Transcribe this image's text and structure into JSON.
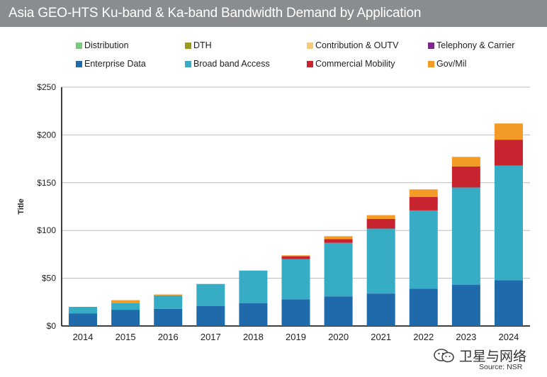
{
  "title": "Asia GEO-HTS Ku-band & Ka-band Bandwidth Demand by Application",
  "colors": {
    "title_bar": "#8a8d8f",
    "grid": "#bbbbbb",
    "axis": "#000000"
  },
  "chart_data": {
    "type": "bar",
    "stacked": true,
    "title": "Asia GEO-HTS Ku-band & Ka-band Bandwidth Demand by Application",
    "ylabel": "Title",
    "xlabel": "",
    "ylim": [
      0,
      250
    ],
    "yticks": [
      "$0",
      "$50",
      "$100",
      "$150",
      "$200",
      "$250"
    ],
    "grid": true,
    "legend_position": "top",
    "categories": [
      "2014",
      "2015",
      "2016",
      "2017",
      "2018",
      "2019",
      "2020",
      "2021",
      "2022",
      "2023",
      "2024"
    ],
    "series": [
      {
        "name": "Enterprise Data",
        "color": "#1f6aab",
        "values": [
          13,
          17,
          18,
          21,
          24,
          28,
          31,
          34,
          39,
          43,
          48
        ]
      },
      {
        "name": "Broad band Access",
        "color": "#36adc4",
        "values": [
          7,
          7,
          14,
          23,
          34,
          42,
          56,
          68,
          82,
          102,
          120
        ]
      },
      {
        "name": "Commercial Mobility",
        "color": "#c8242f",
        "values": [
          0,
          0,
          0,
          0,
          0,
          3,
          4,
          10,
          14,
          22,
          27
        ]
      },
      {
        "name": "Gov/Mil",
        "color": "#f39b26",
        "values": [
          0,
          3,
          1,
          0,
          0,
          1,
          3,
          4,
          8,
          10,
          17
        ]
      },
      {
        "name": "Distribution",
        "color": "#7cc87d",
        "values": [
          0,
          0,
          0,
          0,
          0,
          0,
          0,
          0,
          0,
          0,
          0
        ]
      },
      {
        "name": "DTH",
        "color": "#9c9a1e",
        "values": [
          0,
          0,
          0,
          0,
          0,
          0,
          0,
          0,
          0,
          0,
          0
        ]
      },
      {
        "name": "Contribution & OUTV",
        "color": "#f8c97a",
        "values": [
          0,
          0,
          0,
          0,
          0,
          0,
          0,
          0,
          0,
          0,
          0
        ]
      },
      {
        "name": "Telephony & Carrier",
        "color": "#7b2a8a",
        "values": [
          0,
          0,
          0,
          0,
          0,
          0,
          0,
          0,
          0,
          0,
          0
        ]
      }
    ]
  },
  "legend": [
    {
      "label": "Distribution",
      "color": "#7cc87d"
    },
    {
      "label": "DTH",
      "color": "#9c9a1e"
    },
    {
      "label": "Contribution & OUTV",
      "color": "#f8c97a"
    },
    {
      "label": "Telephony & Carrier",
      "color": "#7b2a8a"
    },
    {
      "label": "Enterprise Data",
      "color": "#1f6aab"
    },
    {
      "label": "Broad band Access",
      "color": "#36adc4"
    },
    {
      "label": "Commercial Mobility",
      "color": "#c8242f"
    },
    {
      "label": "Gov/Mil",
      "color": "#f39b26"
    }
  ],
  "watermark": {
    "text": "卫星与网络",
    "icon": "wechat-icon"
  },
  "source": "Source: NSR"
}
